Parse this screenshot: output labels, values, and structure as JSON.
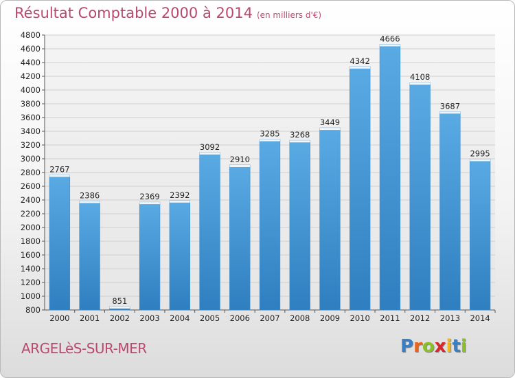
{
  "title": "Résultat Comptable 2000 à 2014",
  "subtitle": "(en milliers d'€)",
  "location": "ARGELèS-SUR-MER",
  "brand": {
    "letters": [
      "P",
      "r",
      "o",
      "x",
      "i",
      "t",
      "i"
    ],
    "colors": [
      "#3a7fc4",
      "#e8641b",
      "#8bbf2a",
      "#d8262a",
      "#f2b51c",
      "#3a7fc4",
      "#8bbf2a"
    ]
  },
  "colors": {
    "bar": "#5aaae4",
    "bar_dark": "#2f7fc0",
    "title": "#b84a6e",
    "grid": "#cfcfcf"
  },
  "chart_data": {
    "type": "bar",
    "title": "Résultat Comptable 2000 à 2014",
    "subtitle": "(en milliers d'€)",
    "xlabel": "",
    "ylabel": "",
    "ylim": [
      800,
      4800
    ],
    "yticks": [
      800,
      1000,
      1200,
      1400,
      1600,
      1800,
      2000,
      2200,
      2400,
      2600,
      2800,
      3000,
      3200,
      3400,
      3600,
      3800,
      4000,
      4200,
      4400,
      4600,
      4800
    ],
    "grid": true,
    "categories": [
      "2000",
      "2001",
      "2002",
      "2003",
      "2004",
      "2005",
      "2006",
      "2007",
      "2008",
      "2009",
      "2010",
      "2011",
      "2012",
      "2013",
      "2014"
    ],
    "values": [
      2767,
      2386,
      851,
      2369,
      2392,
      3092,
      2910,
      3285,
      3268,
      3449,
      4342,
      4666,
      4108,
      3687,
      2995
    ]
  }
}
